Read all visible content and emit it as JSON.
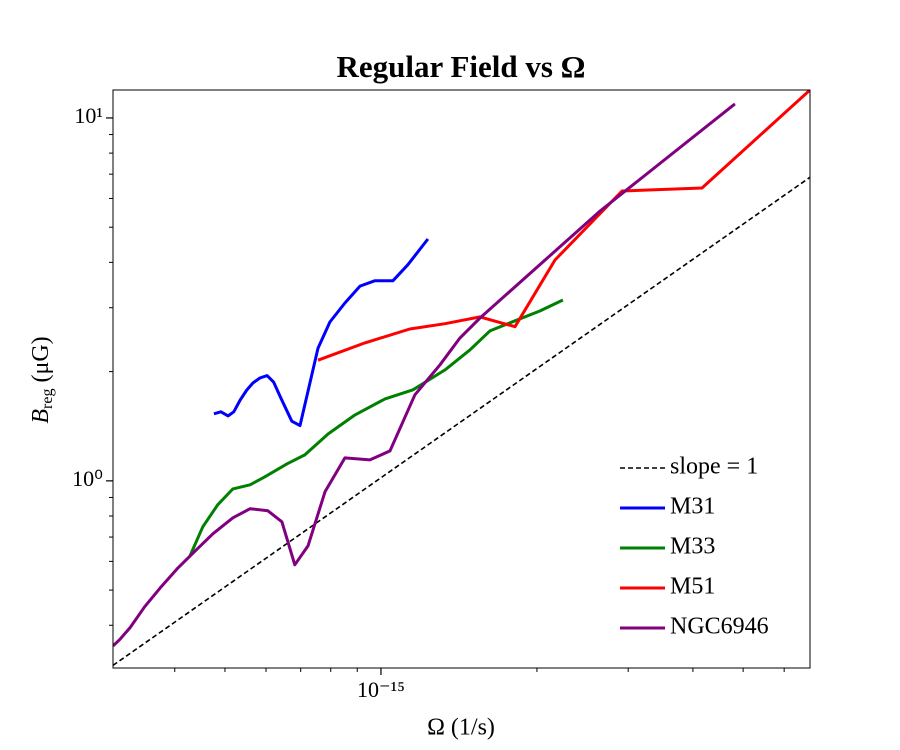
{
  "chart_data": {
    "type": "line",
    "title": "Regular Field vs Ω",
    "xlabel": "Ω (1/s)",
    "ylabel": {
      "symbol": "B",
      "subscript": "reg",
      "unit": "(μG)"
    },
    "xscale": "log",
    "yscale": "log",
    "xlim": [
      3.04e-16,
      6.73e-15
    ],
    "ylim": [
      0.305,
      11.94
    ],
    "xticks": [
      {
        "value": 1e-15,
        "label": "10⁻¹⁵"
      }
    ],
    "yticks": [
      {
        "value": 1,
        "label": "10⁰"
      },
      {
        "value": 10,
        "label": "10¹"
      }
    ],
    "xminorticks": [
      4e-16,
      5e-16,
      6e-16,
      7e-16,
      8e-16,
      9e-16,
      2e-15,
      3e-15,
      4e-15,
      5e-15,
      6e-15
    ],
    "yminorticks": [
      0.4,
      0.5,
      0.6,
      0.7,
      0.8,
      0.9,
      2,
      3,
      4,
      5,
      6,
      7,
      8,
      9
    ],
    "legend": "lower right",
    "series": [
      {
        "name": "slope = 1",
        "color": "#000000",
        "linestyle": "dashed",
        "x": [
          3.04e-16,
          6.73e-15
        ],
        "values": [
          0.31,
          6.86
        ]
      },
      {
        "name": "M31",
        "color": "#0000ff",
        "linestyle": "solid",
        "x": [
          4.76e-16,
          4.91e-16,
          5.07e-16,
          5.2e-16,
          5.35e-16,
          5.51e-16,
          5.66e-16,
          5.84e-16,
          6.03e-16,
          6.21e-16,
          6.41e-16,
          6.73e-16,
          6.98e-16,
          7.56e-16,
          7.97e-16,
          8.52e-16,
          9.11e-16,
          9.74e-16,
          1.055e-15,
          1.127e-15,
          1.232e-15
        ],
        "values": [
          1.53,
          1.55,
          1.51,
          1.55,
          1.67,
          1.78,
          1.86,
          1.92,
          1.95,
          1.87,
          1.69,
          1.46,
          1.42,
          2.32,
          2.74,
          3.09,
          3.44,
          3.56,
          3.56,
          3.94,
          4.64
        ]
      },
      {
        "name": "M33",
        "color": "#008000",
        "linestyle": "solid",
        "x": [
          4.28e-16,
          4.53e-16,
          4.84e-16,
          5.18e-16,
          5.59e-16,
          5.97e-16,
          6.59e-16,
          7.13e-16,
          7.91e-16,
          8.91e-16,
          1.018e-15,
          1.153e-15,
          1.329e-15,
          1.485e-15,
          1.623e-15,
          1.814e-15,
          2.028e-15,
          2.245e-15
        ],
        "values": [
          0.621,
          0.747,
          0.859,
          0.95,
          0.975,
          1.026,
          1.114,
          1.179,
          1.347,
          1.52,
          1.682,
          1.782,
          2.022,
          2.296,
          2.59,
          2.76,
          2.94,
          3.15
        ]
      },
      {
        "name": "M51",
        "color": "#ff0000",
        "linestyle": "solid",
        "x": [
          7.56e-16,
          9.31e-16,
          1.137e-15,
          1.329e-15,
          1.553e-15,
          1.814e-15,
          2.167e-15,
          2.919e-15,
          4.165e-15,
          6.73e-15
        ],
        "values": [
          2.15,
          2.4,
          2.62,
          2.71,
          2.83,
          2.66,
          4.06,
          6.29,
          6.41,
          11.94
        ]
      },
      {
        "name": "NGC6946",
        "color": "#800080",
        "linestyle": "solid",
        "x": [
          3.04e-16,
          3.13e-16,
          3.28e-16,
          3.5e-16,
          3.75e-16,
          4.06e-16,
          4.38e-16,
          4.74e-16,
          5.18e-16,
          5.59e-16,
          6.05e-16,
          6.44e-16,
          6.82e-16,
          7.23e-16,
          7.8e-16,
          8.52e-16,
          9.52e-16,
          1.041e-15,
          1.163e-15,
          1.3e-15,
          1.421e-15,
          1.553e-15,
          2.648e-15,
          4.82e-15
        ],
        "values": [
          0.351,
          0.365,
          0.394,
          0.45,
          0.507,
          0.576,
          0.641,
          0.715,
          0.791,
          0.838,
          0.827,
          0.771,
          0.587,
          0.662,
          0.933,
          1.157,
          1.142,
          1.209,
          1.726,
          2.088,
          2.477,
          2.81,
          5.54,
          10.93
        ]
      }
    ]
  }
}
